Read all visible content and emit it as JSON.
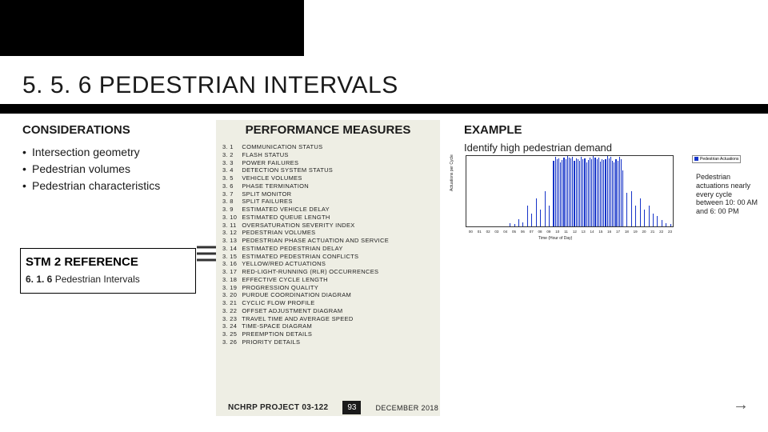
{
  "title": "5. 5. 6 PEDESTRIAN INTERVALS",
  "left": {
    "heading": "CONSIDERATIONS",
    "bullets": [
      "Intersection geometry",
      "Pedestrian volumes",
      "Pedestrian characteristics"
    ],
    "stm_heading": "STM 2 REFERENCE",
    "stm_ref_num": "6. 1. 6",
    "stm_ref_text": " Pedestrian Intervals"
  },
  "mid": {
    "heading": "PERFORMANCE MEASURES",
    "items": [
      {
        "n": "3. 1",
        "t": "COMMUNICATION STATUS"
      },
      {
        "n": "3. 2",
        "t": "FLASH STATUS"
      },
      {
        "n": "3. 3",
        "t": "POWER FAILURES"
      },
      {
        "n": "3. 4",
        "t": "DETECTION SYSTEM STATUS"
      },
      {
        "n": "3. 5",
        "t": "VEHICLE VOLUMES"
      },
      {
        "n": "3. 6",
        "t": "PHASE TERMINATION"
      },
      {
        "n": "3. 7",
        "t": "SPLIT MONITOR"
      },
      {
        "n": "3. 8",
        "t": "SPLIT FAILURES"
      },
      {
        "n": "3. 9",
        "t": "ESTIMATED VEHICLE DELAY"
      },
      {
        "n": "3. 10",
        "t": "ESTIMATED QUEUE LENGTH"
      },
      {
        "n": "3. 11",
        "t": "OVERSATURATION SEVERITY INDEX"
      },
      {
        "n": "3. 12",
        "t": "PEDESTRIAN VOLUMES"
      },
      {
        "n": "3. 13",
        "t": "PEDESTRIAN PHASE ACTUATION AND SERVICE"
      },
      {
        "n": "3. 14",
        "t": "ESTIMATED PEDESTRIAN DELAY"
      },
      {
        "n": "3. 15",
        "t": "ESTIMATED PEDESTRIAN CONFLICTS"
      },
      {
        "n": "3. 16",
        "t": "YELLOW/RED ACTUATIONS"
      },
      {
        "n": "3. 17",
        "t": "RED-LIGHT-RUNNING (RLR) OCCURRENCES"
      },
      {
        "n": "3. 18",
        "t": "EFFECTIVE CYCLE LENGTH"
      },
      {
        "n": "3. 19",
        "t": "PROGRESSION QUALITY"
      },
      {
        "n": "3. 20",
        "t": "PURDUE COORDINATION DIAGRAM"
      },
      {
        "n": "3. 21",
        "t": "CYCLIC FLOW PROFILE"
      },
      {
        "n": "3. 22",
        "t": "OFFSET ADJUSTMENT DIAGRAM"
      },
      {
        "n": "3. 23",
        "t": "TRAVEL TIME AND AVERAGE SPEED"
      },
      {
        "n": "3. 24",
        "t": "TIME-SPACE DIAGRAM"
      },
      {
        "n": "3. 25",
        "t": "PREEMPTION DETAILS"
      },
      {
        "n": "3. 26",
        "t": "PRIORITY DETAILS"
      }
    ]
  },
  "right": {
    "heading": "EXAMPLE",
    "caption": "Identify high pedestrian demand",
    "note": "Pedestrian actuations nearly every cycle between 10: 00 AM and 6: 00 PM",
    "legend": "Pedestrian Actuations",
    "chart": {
      "type": "bar",
      "xlabel": "Time (Hour of Day)",
      "ylabel": "Actuations per Cycle",
      "xticks": [
        "00",
        "01",
        "02",
        "03",
        "04",
        "05",
        "06",
        "07",
        "08",
        "09",
        "10",
        "11",
        "12",
        "13",
        "14",
        "15",
        "16",
        "17",
        "18",
        "19",
        "20",
        "21",
        "22",
        "23"
      ],
      "ylim": [
        0,
        1
      ],
      "bar_color": "#1634c9",
      "background": "#ffffff",
      "values": [
        0,
        0,
        0,
        0,
        0,
        0.05,
        0.1,
        0.3,
        0.4,
        0.5,
        0.95,
        0.98,
        0.97,
        0.95,
        0.98,
        0.96,
        0.97,
        0.95,
        0.8,
        0.5,
        0.4,
        0.3,
        0.15,
        0.05
      ],
      "dense_start_hour": 10,
      "dense_end_hour": 18
    }
  },
  "footer": {
    "project": "NCHRP PROJECT 03-122",
    "page": "93",
    "date": "DECEMBER 2018"
  },
  "colors": {
    "black": "#000000",
    "mid_bg": "#eeeee4",
    "bar": "#1634c9"
  }
}
